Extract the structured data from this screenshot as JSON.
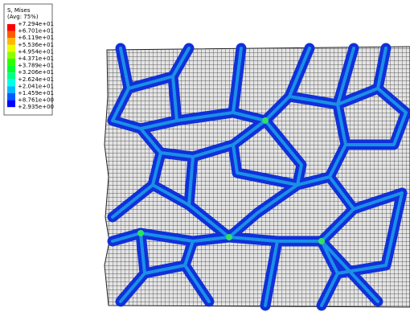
{
  "legend": {
    "title": "S, Mises",
    "subtitle": "(Avg: 75%)",
    "labels": [
      "+7.294e+01",
      "+6.701e+01",
      "+6.119e+01",
      "+5.536e+01",
      "+4.954e+01",
      "+4.371e+01",
      "+3.789e+01",
      "+3.206e+01",
      "+2.624e+01",
      "+2.041e+01",
      "+1.459e+01",
      "+8.761e+00",
      "+2.935e+00"
    ],
    "colors": [
      "#ff0000",
      "#ff5c00",
      "#ffb900",
      "#e9ff00",
      "#8cff00",
      "#2eff00",
      "#00ff2e",
      "#00ff8b",
      "#00ffe8",
      "#00b9ff",
      "#005cff",
      "#0000ff"
    ]
  }
}
